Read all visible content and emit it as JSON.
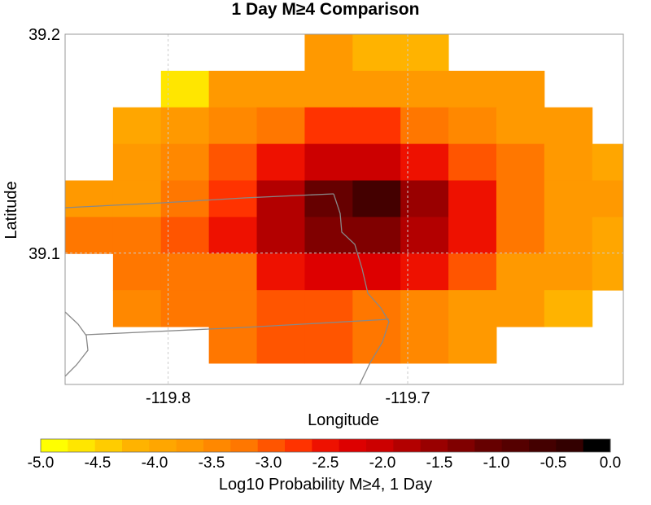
{
  "title": "1 Day M≥4 Comparison",
  "chart_data": {
    "type": "heatmap",
    "title": "1 Day M≥4 Comparison",
    "xlabel": "Longitude",
    "ylabel": "Latitude",
    "x_ticks": [
      -119.8,
      -119.7
    ],
    "x_tick_labels": [
      "-119.8",
      "-119.7"
    ],
    "y_ticks": [
      39.1,
      39.2
    ],
    "y_tick_labels": [
      "39.1",
      "39.2"
    ],
    "xlim": [
      -119.843,
      -119.61
    ],
    "ylim": [
      39.04,
      39.2
    ],
    "grid": true,
    "cell_width": 0.02,
    "cell_height": 0.0167,
    "cell_x_origin": -119.843,
    "cell_y_top": 39.2,
    "value_range": [
      -5.0,
      0.0
    ],
    "grid_values": [
      [
        null,
        null,
        null,
        null,
        null,
        -3.6,
        -4.2,
        -4.2,
        null,
        null,
        null,
        null
      ],
      [
        null,
        null,
        -4.6,
        -3.8,
        -3.6,
        -3.6,
        -3.6,
        -3.6,
        -3.8,
        -3.8,
        null,
        null
      ],
      [
        null,
        -4.0,
        -3.8,
        -3.4,
        -3.1,
        -2.7,
        -2.7,
        -3.2,
        -3.4,
        -3.8,
        -3.8,
        null
      ],
      [
        null,
        -3.8,
        -3.5,
        -2.9,
        -2.4,
        -2.1,
        -2.1,
        -2.5,
        -2.9,
        -3.2,
        -3.8,
        -4.0
      ],
      [
        -3.8,
        -3.6,
        -3.2,
        -2.8,
        -1.8,
        -1.0,
        -0.7,
        -1.6,
        -2.4,
        -3.2,
        -3.6,
        -3.8
      ],
      [
        -3.3,
        -3.3,
        -3.0,
        -2.6,
        -1.8,
        -1.2,
        -1.2,
        -1.8,
        -2.5,
        -3.2,
        -3.8,
        -4.0
      ],
      [
        null,
        -3.3,
        -3.1,
        -3.1,
        -2.6,
        -2.2,
        -2.2,
        -2.6,
        -3.0,
        -3.6,
        -3.8,
        -4.0
      ],
      [
        null,
        -3.4,
        -3.3,
        -3.3,
        -3.0,
        -3.0,
        -3.1,
        -3.4,
        -3.6,
        -3.8,
        -4.1,
        null
      ],
      [
        null,
        null,
        null,
        -3.3,
        -3.0,
        -3.0,
        -3.2,
        -3.5,
        -3.8,
        null,
        null,
        null
      ]
    ],
    "colorbar": {
      "label": "Log10 Probability M≥4, 1 Day",
      "min": -5.0,
      "max": 0.0,
      "tick_values": [
        -5.0,
        -4.5,
        -4.0,
        -3.5,
        -3.0,
        -2.5,
        -2.0,
        -1.5,
        -1.0,
        -0.5,
        0.0
      ],
      "tick_labels": [
        "-5.0",
        "-4.5",
        "-4.0",
        "-3.5",
        "-3.0",
        "-2.5",
        "-2.0",
        "-1.5",
        "-1.0",
        "-0.5",
        "0.0"
      ],
      "colors": [
        "#ffff00",
        "#ffe600",
        "#ffcc00",
        "#ffb300",
        "#ffa600",
        "#ff9900",
        "#ff8800",
        "#ff7700",
        "#ff5500",
        "#ff3300",
        "#ee1100",
        "#dd0000",
        "#cc0000",
        "#b30000",
        "#990000",
        "#800000",
        "#660000",
        "#550000",
        "#440000",
        "#330000",
        "#000000"
      ]
    }
  },
  "colors": {
    "axis_frame": "#999999",
    "grid": "#cccccc",
    "boundary": "#888888"
  }
}
